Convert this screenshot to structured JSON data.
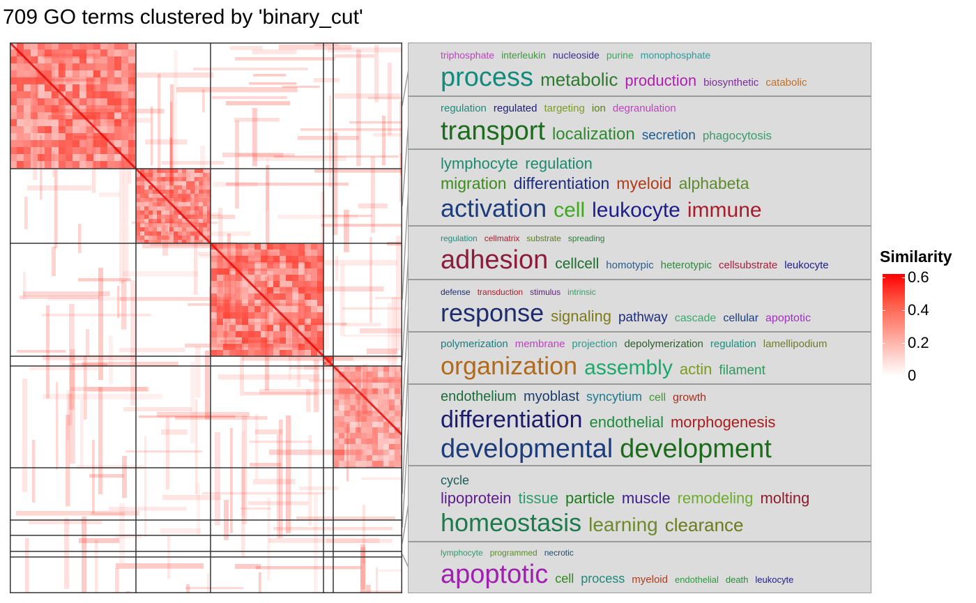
{
  "title": "709 GO terms clustered by 'binary_cut'",
  "chart_data": {
    "type": "heatmap",
    "title": "709 GO terms clustered by 'binary_cut'",
    "n_terms": 709,
    "cluster_boundaries": [
      229,
      358,
      558,
      575,
      790,
      1012,
      1115,
      1140,
      1175,
      1190
    ],
    "legend": {
      "title": "Similarity",
      "ticks": [
        "0",
        "0.2",
        "0.4",
        "0.6"
      ],
      "values": [
        0,
        0.2,
        0.4,
        0.6
      ],
      "colors": [
        "#ffffff",
        "#ff0000"
      ]
    }
  },
  "panels": [
    {
      "rows": [
        {
          "words": [
            {
              "t": "triphosphate",
              "c": "#c040c0",
              "s": 14
            },
            {
              "t": "interleukin",
              "c": "#3c9a3c",
              "s": 14
            },
            {
              "t": "nucleoside",
              "c": "#3c2c8c",
              "s": 14
            },
            {
              "t": "purine",
              "c": "#3ca85c",
              "s": 14
            },
            {
              "t": "monophosphate",
              "c": "#2c9a9a",
              "s": 14
            }
          ]
        },
        {
          "words": [
            {
              "t": "process",
              "c": "#148a7c",
              "s": 38
            },
            {
              "t": "metabolic",
              "c": "#2c7a2c",
              "s": 26
            },
            {
              "t": "production",
              "c": "#b020b0",
              "s": 22
            },
            {
              "t": "biosynthetic",
              "c": "#7a2c9a",
              "s": 15
            },
            {
              "t": "catabolic",
              "c": "#c07028",
              "s": 15
            }
          ]
        }
      ]
    },
    {
      "rows": [
        {
          "words": [
            {
              "t": "regulation",
              "c": "#1c8a7c",
              "s": 15
            },
            {
              "t": "regulated",
              "c": "#1c1c7c",
              "s": 15
            },
            {
              "t": "targeting",
              "c": "#7c9a2c",
              "s": 15
            },
            {
              "t": "ion",
              "c": "#5c7a1c",
              "s": 15
            },
            {
              "t": "degranulation",
              "c": "#c040c0",
              "s": 15
            }
          ]
        },
        {
          "words": [
            {
              "t": "transport",
              "c": "#1c6c1c",
              "s": 38
            },
            {
              "t": "localization",
              "c": "#2c8a2c",
              "s": 24
            },
            {
              "t": "secretion",
              "c": "#1c5c8c",
              "s": 19
            },
            {
              "t": "phagocytosis",
              "c": "#3c9a6c",
              "s": 17
            }
          ]
        }
      ]
    },
    {
      "rows": [
        {
          "words": [
            {
              "t": "lymphocyte",
              "c": "#1c8a6c",
              "s": 22
            },
            {
              "t": "regulation",
              "c": "#1c8a6c",
              "s": 22
            }
          ]
        },
        {
          "words": [
            {
              "t": "migration",
              "c": "#3c8a1c",
              "s": 23
            },
            {
              "t": "differentiation",
              "c": "#1c2c7c",
              "s": 23
            },
            {
              "t": "myeloid",
              "c": "#b03c1c",
              "s": 23
            },
            {
              "t": "alphabeta",
              "c": "#5c8a2c",
              "s": 23
            }
          ]
        },
        {
          "words": [
            {
              "t": "activation",
              "c": "#1c3c7c",
              "s": 36
            },
            {
              "t": "cell",
              "c": "#3ca81c",
              "s": 30
            },
            {
              "t": "leukocyte",
              "c": "#1c1c8c",
              "s": 30
            },
            {
              "t": "immune",
              "c": "#a81c2c",
              "s": 30
            }
          ]
        }
      ]
    },
    {
      "rows": [
        {
          "words": [
            {
              "t": "regulation",
              "c": "#1c8a7c",
              "s": 12
            },
            {
              "t": "cellmatrix",
              "c": "#a81c2c",
              "s": 12
            },
            {
              "t": "substrate",
              "c": "#5c7a1c",
              "s": 12
            },
            {
              "t": "spreading",
              "c": "#2c7a3c",
              "s": 12
            }
          ]
        },
        {
          "words": [
            {
              "t": "adhesion",
              "c": "#8c1c3c",
              "s": 38
            },
            {
              "t": "cellcell",
              "c": "#1c6c2c",
              "s": 21
            },
            {
              "t": "homotypic",
              "c": "#2c5c8c",
              "s": 15
            },
            {
              "t": "heterotypic",
              "c": "#2c8a3c",
              "s": 15
            },
            {
              "t": "cellsubstrate",
              "c": "#a81c3c",
              "s": 15
            },
            {
              "t": "leukocyte",
              "c": "#1c1c8c",
              "s": 15
            }
          ]
        }
      ]
    },
    {
      "rows": [
        {
          "words": [
            {
              "t": "defense",
              "c": "#1c2c6c",
              "s": 12
            },
            {
              "t": "transduction",
              "c": "#a81c2c",
              "s": 12
            },
            {
              "t": "stimulus",
              "c": "#5c1c7c",
              "s": 12
            },
            {
              "t": "intrinsic",
              "c": "#3c9a6c",
              "s": 12
            }
          ]
        },
        {
          "words": [
            {
              "t": "response",
              "c": "#1c2c6c",
              "s": 36
            },
            {
              "t": "signaling",
              "c": "#7c7a1c",
              "s": 22
            },
            {
              "t": "pathway",
              "c": "#1c2c7c",
              "s": 19
            },
            {
              "t": "cascade",
              "c": "#3ca86c",
              "s": 16
            },
            {
              "t": "cellular",
              "c": "#1c3c7c",
              "s": 16
            },
            {
              "t": "apoptotic",
              "c": "#a030c0",
              "s": 16
            }
          ]
        }
      ]
    },
    {
      "rows": [
        {
          "words": [
            {
              "t": "polymerization",
              "c": "#1c7a7c",
              "s": 15
            },
            {
              "t": "membrane",
              "c": "#c040c0",
              "s": 15
            },
            {
              "t": "projection",
              "c": "#2c9a8c",
              "s": 15
            },
            {
              "t": "depolymerization",
              "c": "#2c5c2c",
              "s": 15
            },
            {
              "t": "regulation",
              "c": "#1c8a7c",
              "s": 15
            },
            {
              "t": "lamellipodium",
              "c": "#6c7a2c",
              "s": 15
            }
          ]
        },
        {
          "words": [
            {
              "t": "organization",
              "c": "#b06a1c",
              "s": 36
            },
            {
              "t": "assembly",
              "c": "#1ca86c",
              "s": 30
            },
            {
              "t": "actin",
              "c": "#7c9a1c",
              "s": 22
            },
            {
              "t": "filament",
              "c": "#2c9a5c",
              "s": 19
            }
          ]
        }
      ]
    },
    {
      "rows": [
        {
          "words": [
            {
              "t": "endothelium",
              "c": "#1c6c3c",
              "s": 20
            },
            {
              "t": "myoblast",
              "c": "#1c3c6c",
              "s": 20
            },
            {
              "t": "syncytium",
              "c": "#1c7a8c",
              "s": 18
            },
            {
              "t": "cell",
              "c": "#3c9a2c",
              "s": 16
            },
            {
              "t": "growth",
              "c": "#a82c1c",
              "s": 16
            }
          ]
        },
        {
          "words": [
            {
              "t": "differentiation",
              "c": "#1c1c6c",
              "s": 34
            },
            {
              "t": "endothelial",
              "c": "#1c8a3c",
              "s": 22
            },
            {
              "t": "morphogenesis",
              "c": "#a81c1c",
              "s": 22
            }
          ]
        },
        {
          "words": [
            {
              "t": "developmental",
              "c": "#1c3c7c",
              "s": 38
            },
            {
              "t": "development",
              "c": "#1c6c1c",
              "s": 38
            }
          ]
        }
      ]
    },
    {
      "rows": [
        {
          "words": [
            {
              "t": "cycle",
              "c": "#1c5c5c",
              "s": 18
            }
          ]
        },
        {
          "words": [
            {
              "t": "lipoprotein",
              "c": "#5c1c8c",
              "s": 22
            },
            {
              "t": "tissue",
              "c": "#2c9a6c",
              "s": 22
            },
            {
              "t": "particle",
              "c": "#1c7a1c",
              "s": 22
            },
            {
              "t": "muscle",
              "c": "#3c1c8c",
              "s": 22
            },
            {
              "t": "remodeling",
              "c": "#6cac2c",
              "s": 22
            },
            {
              "t": "molting",
              "c": "#8c1c2c",
              "s": 22
            }
          ]
        },
        {
          "words": [
            {
              "t": "homeostasis",
              "c": "#1c7a4c",
              "s": 36
            },
            {
              "t": "learning",
              "c": "#6c8a2c",
              "s": 28
            },
            {
              "t": "clearance",
              "c": "#6c7a1c",
              "s": 26
            }
          ]
        }
      ]
    },
    {
      "rows": [
        {
          "words": [
            {
              "t": "lymphocyte",
              "c": "#2c9a6c",
              "s": 12
            },
            {
              "t": "programmed",
              "c": "#5c8a2c",
              "s": 12
            },
            {
              "t": "necrotic",
              "c": "#1c4c6c",
              "s": 12
            }
          ]
        },
        {
          "words": [
            {
              "t": "apoptotic",
              "c": "#a020b0",
              "s": 38
            },
            {
              "t": "cell",
              "c": "#2c8a1c",
              "s": 18
            },
            {
              "t": "process",
              "c": "#1c8a7c",
              "s": 18
            },
            {
              "t": "myeloid",
              "c": "#b03c1c",
              "s": 15
            },
            {
              "t": "endothelial",
              "c": "#2c9a3c",
              "s": 13
            },
            {
              "t": "death",
              "c": "#2c8a3c",
              "s": 13
            },
            {
              "t": "leukocyte",
              "c": "#1c1c8c",
              "s": 13
            }
          ]
        }
      ]
    }
  ]
}
